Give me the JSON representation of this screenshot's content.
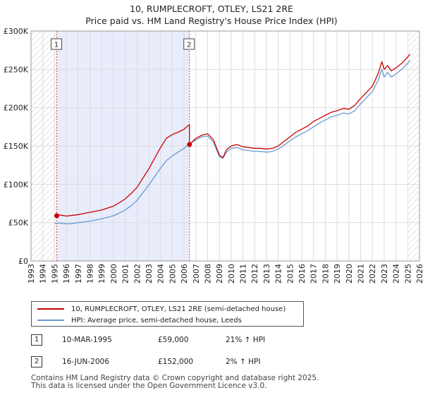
{
  "header": {
    "title_line1": "10, RUMPLECROFT, OTLEY, LS21 2RE",
    "title_line2": "Price paid vs. HM Land Registry's House Price Index (HPI)"
  },
  "chart_data": {
    "type": "line",
    "title": "10, RUMPLECROFT, OTLEY, LS21 2RE",
    "subtitle": "Price paid vs. HM Land Registry's House Price Index (HPI)",
    "xlim": [
      1993,
      2026
    ],
    "ylim": [
      0,
      300000
    ],
    "x_ticks": [
      "1993",
      "1994",
      "1995",
      "1996",
      "1997",
      "1998",
      "1999",
      "2000",
      "2001",
      "2002",
      "2003",
      "2004",
      "2005",
      "2006",
      "2007",
      "2008",
      "2009",
      "2010",
      "2011",
      "2012",
      "2013",
      "2014",
      "2015",
      "2016",
      "2017",
      "2018",
      "2019",
      "2020",
      "2021",
      "2022",
      "2023",
      "2024",
      "2025",
      "2026"
    ],
    "y_ticks": [
      {
        "value": 0,
        "label": "£0"
      },
      {
        "value": 50000,
        "label": "£50K"
      },
      {
        "value": 100000,
        "label": "£100K"
      },
      {
        "value": 150000,
        "label": "£150K"
      },
      {
        "value": 200000,
        "label": "£200K"
      },
      {
        "value": 250000,
        "label": "£250K"
      },
      {
        "value": 300000,
        "label": "£300K"
      }
    ],
    "grid": true,
    "shaded_region": {
      "from": 1995.19,
      "to": 2006.46,
      "color": "#e8ecfb"
    },
    "hatched_regions": [
      [
        1993,
        1995.19
      ],
      [
        2025.0,
        2026
      ]
    ],
    "series": [
      {
        "name": "10, RUMPLECROFT, OTLEY, LS21 2RE (semi-detached house)",
        "color": "#cc0000",
        "x": [
          1995.19,
          1995.5,
          1996,
          1996.5,
          1997,
          1997.5,
          1998,
          1998.5,
          1999,
          1999.5,
          2000,
          2000.5,
          2001,
          2001.5,
          2002,
          2002.5,
          2003,
          2003.5,
          2004,
          2004.5,
          2005,
          2005.5,
          2006,
          2006.3,
          2006.46,
          2006.47,
          2007,
          2007.5,
          2008,
          2008.5,
          2009,
          2009.3,
          2009.6,
          2010,
          2010.5,
          2011,
          2011.5,
          2012,
          2012.5,
          2013,
          2013.5,
          2014,
          2014.5,
          2015,
          2015.5,
          2016,
          2016.5,
          2017,
          2017.5,
          2018,
          2018.5,
          2019,
          2019.5,
          2020,
          2020.5,
          2021,
          2021.5,
          2022,
          2022.5,
          2022.8,
          2023,
          2023.3,
          2023.6,
          2024,
          2024.5,
          2025,
          2025.2
        ],
        "y": [
          59000,
          60000,
          58500,
          59500,
          60500,
          62000,
          63500,
          65000,
          66500,
          69000,
          71500,
          76000,
          81000,
          88000,
          96000,
          108000,
          120000,
          134000,
          148000,
          160000,
          165000,
          168000,
          172000,
          176000,
          178000,
          152000,
          160000,
          164000,
          166000,
          158000,
          138000,
          135000,
          145000,
          150000,
          152000,
          149000,
          148000,
          147000,
          147000,
          146000,
          147000,
          150000,
          156000,
          162000,
          168000,
          172000,
          176000,
          182000,
          186000,
          190000,
          194000,
          196000,
          199000,
          198000,
          203000,
          212000,
          220000,
          228000,
          245000,
          260000,
          250000,
          255000,
          248000,
          252000,
          258000,
          266000,
          270000
        ]
      },
      {
        "name": "HPI: Average price, semi-detached house, Leeds",
        "color": "#6a9ad0",
        "x": [
          1995.0,
          1995.5,
          1996,
          1996.5,
          1997,
          1997.5,
          1998,
          1998.5,
          1999,
          1999.5,
          2000,
          2000.5,
          2001,
          2001.5,
          2002,
          2002.5,
          2003,
          2003.5,
          2004,
          2004.5,
          2005,
          2005.5,
          2006,
          2006.5,
          2007,
          2007.5,
          2008,
          2008.5,
          2009,
          2009.3,
          2009.6,
          2010,
          2010.5,
          2011,
          2011.5,
          2012,
          2012.5,
          2013,
          2013.5,
          2014,
          2014.5,
          2015,
          2015.5,
          2016,
          2016.5,
          2017,
          2017.5,
          2018,
          2018.5,
          2019,
          2019.5,
          2020,
          2020.5,
          2021,
          2021.5,
          2022,
          2022.5,
          2022.8,
          2023,
          2023.3,
          2023.6,
          2024,
          2024.5,
          2025,
          2025.2
        ],
        "y": [
          49000,
          49500,
          48500,
          49000,
          50000,
          51000,
          52000,
          53500,
          55000,
          57000,
          59000,
          62500,
          66500,
          72000,
          79000,
          89000,
          99000,
          110000,
          121000,
          131000,
          137000,
          142000,
          147000,
          153000,
          158000,
          162000,
          163000,
          155000,
          136000,
          134000,
          142000,
          147000,
          148000,
          145000,
          144000,
          143000,
          143000,
          142000,
          143000,
          146000,
          151000,
          157000,
          162000,
          166000,
          170000,
          175000,
          180000,
          184000,
          188000,
          190000,
          193000,
          192000,
          196000,
          205000,
          213000,
          221000,
          236000,
          250000,
          240000,
          246000,
          240000,
          244000,
          250000,
          258000,
          262000
        ]
      }
    ],
    "sale_markers": [
      {
        "label": "1",
        "x": 1995.19,
        "y": 59000
      },
      {
        "label": "2",
        "x": 2006.46,
        "y": 152000
      }
    ]
  },
  "legend": {
    "entries": [
      {
        "label": "10, RUMPLECROFT, OTLEY, LS21 2RE (semi-detached house)",
        "color": "#cc0000"
      },
      {
        "label": "HPI: Average price, semi-detached house, Leeds",
        "color": "#6a9ad0"
      }
    ]
  },
  "transactions": [
    {
      "num": "1",
      "date": "10-MAR-1995",
      "price": "£59,000",
      "hpi": "21% ↑ HPI"
    },
    {
      "num": "2",
      "date": "16-JUN-2006",
      "price": "£152,000",
      "hpi": "2% ↑ HPI"
    }
  ],
  "footer": {
    "line1": "Contains HM Land Registry data © Crown copyright and database right 2025.",
    "line2": "This data is licensed under the Open Government Licence v3.0."
  }
}
